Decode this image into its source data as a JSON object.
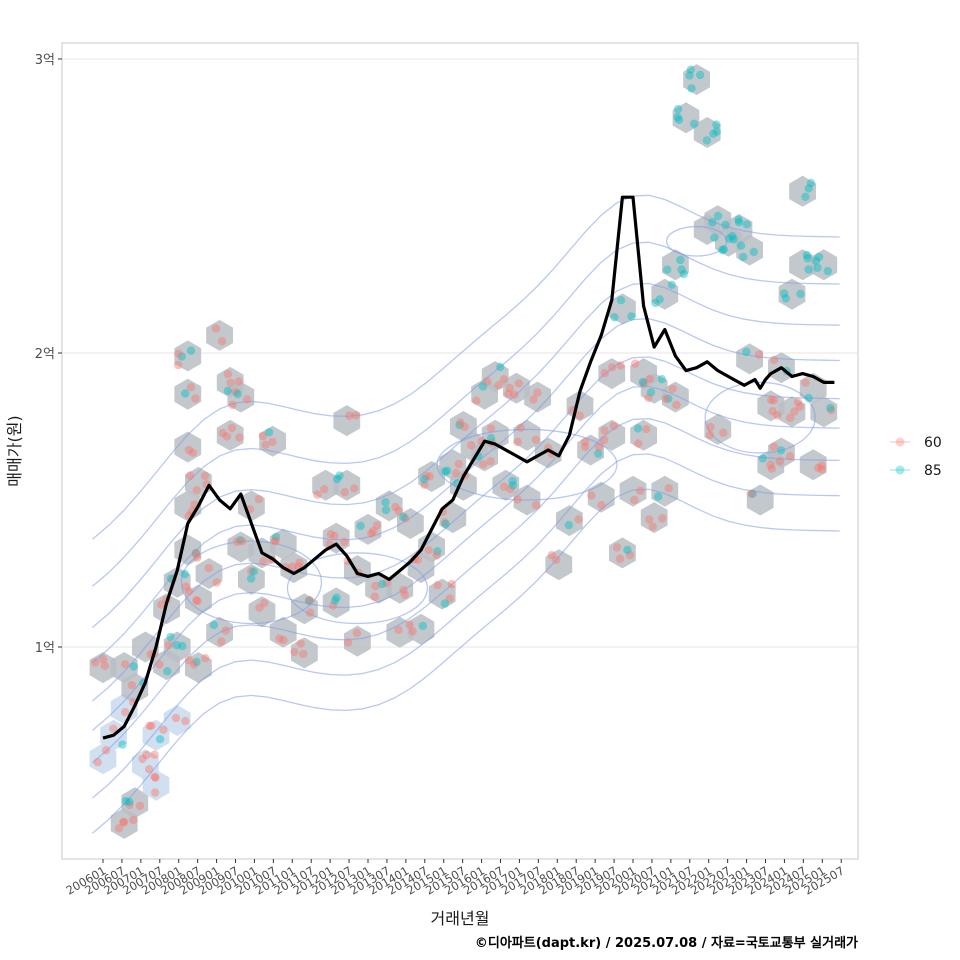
{
  "chart_data": {
    "type": "scatter",
    "xlabel": "거래년월",
    "ylabel": "매매가(원)",
    "caption": "©디아파트(dapt.kr) / 2025.07.08 / 자료=국토교통부 실거래가",
    "x_tick_labels": [
      "200601",
      "200607",
      "200701",
      "200707",
      "200801",
      "200807",
      "200901",
      "200907",
      "201001",
      "201007",
      "201101",
      "201107",
      "201201",
      "201207",
      "201301",
      "201307",
      "201401",
      "201407",
      "201501",
      "201507",
      "201601",
      "201607",
      "201701",
      "201707",
      "201801",
      "201807",
      "201901",
      "201907",
      "202001",
      "202007",
      "202101",
      "202107",
      "202201",
      "202207",
      "202301",
      "202307",
      "202401",
      "202407",
      "202501",
      "202507"
    ],
    "y_tick_labels": [
      "1억",
      "2억",
      "3억"
    ],
    "y_ticks": [
      1,
      2,
      3
    ],
    "ylim": [
      0.3,
      3.06
    ],
    "xlim": [
      -4,
      139
    ],
    "legend": [
      {
        "label": "60",
        "color": "#F8766D"
      },
      {
        "label": "85",
        "color": "#00BFC4"
      }
    ],
    "trend_line": {
      "name": "moving average",
      "color": "#000000",
      "x": [
        0,
        2,
        4,
        6,
        8,
        10,
        12,
        14,
        16,
        18,
        20,
        22,
        24,
        26,
        28,
        30,
        32,
        34,
        36,
        38,
        40,
        42,
        44,
        46,
        48,
        50,
        52,
        54,
        56,
        58,
        60,
        62,
        64,
        66,
        68,
        70,
        72,
        74,
        76,
        78,
        80,
        82,
        84,
        86,
        88,
        90,
        92,
        94,
        96,
        98,
        100,
        102,
        104,
        106,
        108,
        110,
        112,
        114,
        116,
        118,
        119,
        120,
        121,
        122,
        123,
        124,
        125,
        126,
        128,
        130,
        132,
        134,
        136,
        138
      ],
      "y": [
        0.69,
        0.7,
        0.73,
        0.8,
        0.88,
        1.0,
        1.15,
        1.26,
        1.42,
        1.48,
        1.55,
        1.5,
        1.47,
        1.52,
        1.42,
        1.32,
        1.3,
        1.27,
        1.25,
        1.27,
        1.3,
        1.33,
        1.35,
        1.31,
        1.25,
        1.24,
        1.25,
        1.23,
        1.26,
        1.29,
        1.33,
        1.4,
        1.47,
        1.5,
        1.58,
        1.64,
        1.7,
        1.69,
        1.67,
        1.65,
        1.63,
        1.65,
        1.67,
        1.65,
        1.72,
        1.87,
        1.97,
        2.06,
        2.18,
        2.53,
        2.53,
        2.16,
        2.02,
        2.08,
        1.99,
        1.94,
        1.95,
        1.97,
        1.94,
        1.92,
        1.91,
        1.9,
        1.89,
        1.9,
        1.91,
        1.88,
        1.91,
        1.93,
        1.95,
        1.92,
        1.93,
        1.92,
        1.9,
        1.9
      ]
    },
    "hexbin_centers": [
      [
        0,
        0.93
      ],
      [
        0,
        0.62
      ],
      [
        2,
        0.7
      ],
      [
        4,
        0.79
      ],
      [
        4,
        0.93
      ],
      [
        6,
        0.86
      ],
      [
        6,
        0.47
      ],
      [
        4,
        0.4
      ],
      [
        8,
        1.0
      ],
      [
        8,
        0.6
      ],
      [
        10,
        0.53
      ],
      [
        10,
        0.7
      ],
      [
        12,
        0.94
      ],
      [
        12,
        1.13
      ],
      [
        14,
        1.0
      ],
      [
        14,
        1.22
      ],
      [
        14,
        0.75
      ],
      [
        16,
        1.33
      ],
      [
        16,
        1.48
      ],
      [
        16,
        1.68
      ],
      [
        16,
        1.86
      ],
      [
        16,
        1.99
      ],
      [
        18,
        1.56
      ],
      [
        18,
        1.16
      ],
      [
        18,
        0.93
      ],
      [
        20,
        1.25
      ],
      [
        22,
        1.05
      ],
      [
        22,
        2.06
      ],
      [
        24,
        1.72
      ],
      [
        24,
        1.9
      ],
      [
        26,
        1.85
      ],
      [
        26,
        1.34
      ],
      [
        28,
        1.23
      ],
      [
        28,
        1.48
      ],
      [
        30,
        1.32
      ],
      [
        30,
        1.12
      ],
      [
        32,
        1.7
      ],
      [
        34,
        1.35
      ],
      [
        34,
        1.05
      ],
      [
        36,
        1.27
      ],
      [
        38,
        1.13
      ],
      [
        38,
        0.98
      ],
      [
        42,
        1.55
      ],
      [
        44,
        1.37
      ],
      [
        44,
        1.15
      ],
      [
        46,
        1.77
      ],
      [
        46,
        1.55
      ],
      [
        48,
        1.26
      ],
      [
        48,
        1.02
      ],
      [
        50,
        1.4
      ],
      [
        52,
        1.2
      ],
      [
        54,
        1.48
      ],
      [
        56,
        1.2
      ],
      [
        56,
        1.05
      ],
      [
        58,
        1.42
      ],
      [
        60,
        1.27
      ],
      [
        60,
        1.06
      ],
      [
        62,
        1.58
      ],
      [
        62,
        1.34
      ],
      [
        64,
        1.18
      ],
      [
        66,
        1.62
      ],
      [
        66,
        1.44
      ],
      [
        68,
        1.75
      ],
      [
        68,
        1.55
      ],
      [
        70,
        1.68
      ],
      [
        72,
        1.86
      ],
      [
        72,
        1.65
      ],
      [
        74,
        1.92
      ],
      [
        74,
        1.72
      ],
      [
        76,
        1.55
      ],
      [
        78,
        1.88
      ],
      [
        80,
        1.72
      ],
      [
        80,
        1.5
      ],
      [
        82,
        1.85
      ],
      [
        84,
        1.66
      ],
      [
        86,
        1.28
      ],
      [
        88,
        1.43
      ],
      [
        90,
        1.82
      ],
      [
        92,
        1.67
      ],
      [
        94,
        1.51
      ],
      [
        96,
        1.93
      ],
      [
        96,
        1.72
      ],
      [
        98,
        2.15
      ],
      [
        98,
        1.32
      ],
      [
        100,
        1.53
      ],
      [
        102,
        1.93
      ],
      [
        102,
        1.72
      ],
      [
        104,
        1.88
      ],
      [
        104,
        1.44
      ],
      [
        106,
        2.2
      ],
      [
        106,
        1.53
      ],
      [
        108,
        2.3
      ],
      [
        108,
        1.85
      ],
      [
        110,
        2.8
      ],
      [
        112,
        2.93
      ],
      [
        114,
        2.75
      ],
      [
        114,
        2.42
      ],
      [
        116,
        2.45
      ],
      [
        116,
        1.74
      ],
      [
        118,
        2.38
      ],
      [
        120,
        2.42
      ],
      [
        122,
        2.35
      ],
      [
        122,
        1.98
      ],
      [
        124,
        1.5
      ],
      [
        126,
        1.82
      ],
      [
        126,
        1.62
      ],
      [
        128,
        1.95
      ],
      [
        128,
        1.66
      ],
      [
        130,
        2.2
      ],
      [
        130,
        1.8
      ],
      [
        132,
        2.55
      ],
      [
        132,
        2.3
      ],
      [
        134,
        1.88
      ],
      [
        134,
        1.62
      ],
      [
        136,
        2.3
      ],
      [
        136,
        1.8
      ]
    ]
  }
}
